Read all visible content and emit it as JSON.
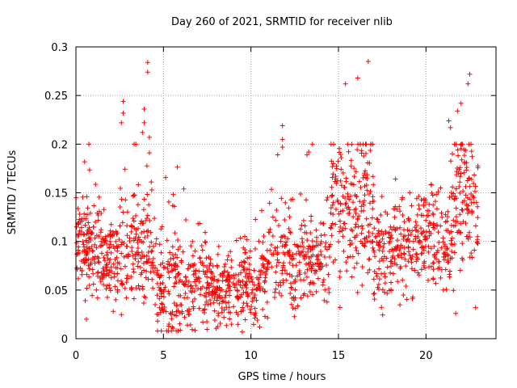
{
  "chart_data": {
    "type": "scatter",
    "title": "Day 260 of 2021, SRMTID for receiver nlib",
    "xlabel": "GPS time / hours",
    "ylabel": "SRMTID / TECUs",
    "xlim": [
      0,
      24
    ],
    "ylim": [
      0,
      0.3
    ],
    "xticks": [
      0,
      5,
      10,
      15,
      20
    ],
    "xtick_labels": [
      "0",
      "5",
      "10",
      "15",
      "20"
    ],
    "yticks": [
      0,
      0.05,
      0.1,
      0.15,
      0.2,
      0.25,
      0.3
    ],
    "ytick_labels": [
      "0",
      "0.05",
      "0.1",
      "0.15",
      "0.2",
      "0.25",
      "0.3"
    ],
    "grid": true,
    "marker": "+",
    "color": "#ff0000",
    "x_extent_hours": [
      0,
      23
    ],
    "notable_points": [
      {
        "x": 4.1,
        "y": 0.284
      },
      {
        "x": 4.1,
        "y": 0.274
      },
      {
        "x": 16.7,
        "y": 0.285
      },
      {
        "x": 16.1,
        "y": 0.268
      },
      {
        "x": 15.4,
        "y": 0.262
      },
      {
        "x": 22.5,
        "y": 0.272
      },
      {
        "x": 22.4,
        "y": 0.262
      },
      {
        "x": 2.7,
        "y": 0.244
      },
      {
        "x": 2.7,
        "y": 0.232
      },
      {
        "x": 2.6,
        "y": 0.222
      },
      {
        "x": 3.9,
        "y": 0.236
      },
      {
        "x": 3.9,
        "y": 0.222
      },
      {
        "x": 3.8,
        "y": 0.212
      },
      {
        "x": 4.2,
        "y": 0.207
      },
      {
        "x": 4.2,
        "y": 0.191
      },
      {
        "x": 11.8,
        "y": 0.219
      },
      {
        "x": 11.8,
        "y": 0.205
      },
      {
        "x": 11.8,
        "y": 0.197
      },
      {
        "x": 13.3,
        "y": 0.192
      },
      {
        "x": 13.2,
        "y": 0.189
      },
      {
        "x": 21.3,
        "y": 0.224
      },
      {
        "x": 21.4,
        "y": 0.217
      },
      {
        "x": 21.8,
        "y": 0.234
      },
      {
        "x": 22.0,
        "y": 0.242
      },
      {
        "x": 9.5,
        "y": 0.007
      },
      {
        "x": 10.5,
        "y": 0.012
      },
      {
        "x": 5.5,
        "y": 0.012
      },
      {
        "x": 0.6,
        "y": 0.02
      },
      {
        "x": 21.7,
        "y": 0.026
      }
    ],
    "series": [
      {
        "name": "SRMTID",
        "density_profile": [
          {
            "x_start": 0,
            "x_end": 1.5,
            "center": 0.095,
            "spread": 0.025,
            "count": 140
          },
          {
            "x_start": 1.5,
            "x_end": 2.5,
            "center": 0.075,
            "spread": 0.02,
            "count": 90
          },
          {
            "x_start": 2.5,
            "x_end": 4.5,
            "center": 0.09,
            "spread": 0.03,
            "count": 150
          },
          {
            "x_start": 4.5,
            "x_end": 7.5,
            "center": 0.055,
            "spread": 0.025,
            "count": 230
          },
          {
            "x_start": 7.5,
            "x_end": 11,
            "center": 0.055,
            "spread": 0.02,
            "count": 270
          },
          {
            "x_start": 11,
            "x_end": 14.5,
            "center": 0.08,
            "spread": 0.025,
            "count": 230
          },
          {
            "x_start": 14.5,
            "x_end": 17,
            "center": 0.13,
            "spread": 0.035,
            "count": 200
          },
          {
            "x_start": 17,
            "x_end": 19.5,
            "center": 0.095,
            "spread": 0.025,
            "count": 180
          },
          {
            "x_start": 19.5,
            "x_end": 21.5,
            "center": 0.1,
            "spread": 0.025,
            "count": 150
          },
          {
            "x_start": 21.5,
            "x_end": 23,
            "center": 0.14,
            "spread": 0.035,
            "count": 120
          }
        ]
      }
    ]
  }
}
